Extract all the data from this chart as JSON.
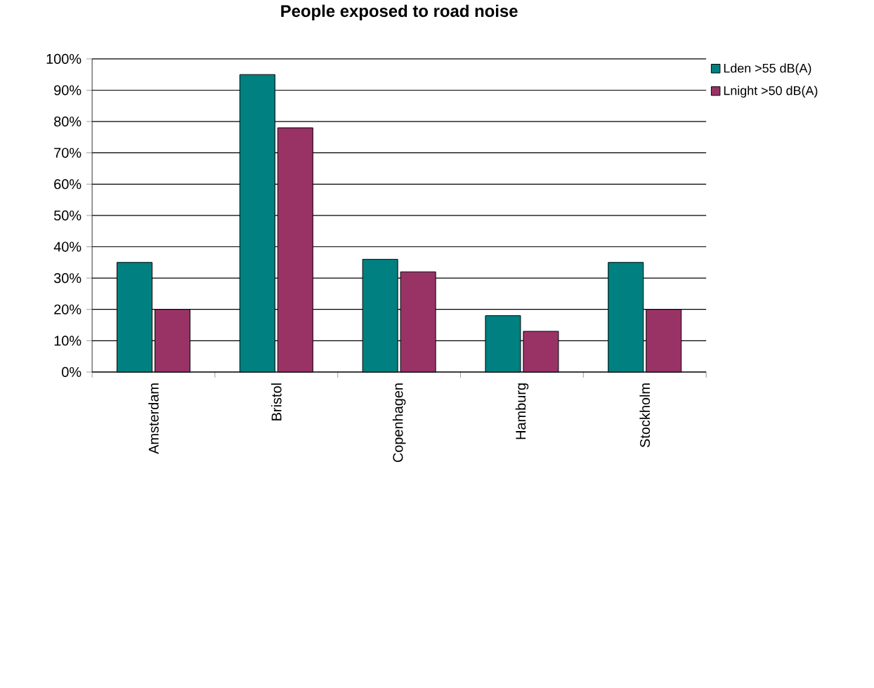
{
  "chart_data": {
    "type": "bar",
    "title": "People exposed to road noise",
    "categories": [
      "Amsterdam",
      "Bristol",
      "Copenhagen",
      "Hamburg",
      "Stockholm"
    ],
    "series": [
      {
        "name": "Lden >55 dB(A)",
        "color": "#008080",
        "values": [
          35,
          95,
          36,
          18,
          35
        ]
      },
      {
        "name": "Lnight >50 dB(A)",
        "color": "#993366",
        "values": [
          20,
          78,
          32,
          13,
          20
        ]
      }
    ],
    "ylim": [
      0,
      100
    ],
    "yticks": [
      {
        "value": 0,
        "label": "0%"
      },
      {
        "value": 10,
        "label": "10%"
      },
      {
        "value": 20,
        "label": "20%"
      },
      {
        "value": 30,
        "label": "30%"
      },
      {
        "value": 40,
        "label": "40%"
      },
      {
        "value": 50,
        "label": "50%"
      },
      {
        "value": 60,
        "label": "60%"
      },
      {
        "value": 70,
        "label": "70%"
      },
      {
        "value": 80,
        "label": "80%"
      },
      {
        "value": 90,
        "label": "90%"
      },
      {
        "value": 100,
        "label": "100%"
      }
    ],
    "grid": "y",
    "legend": "right"
  }
}
